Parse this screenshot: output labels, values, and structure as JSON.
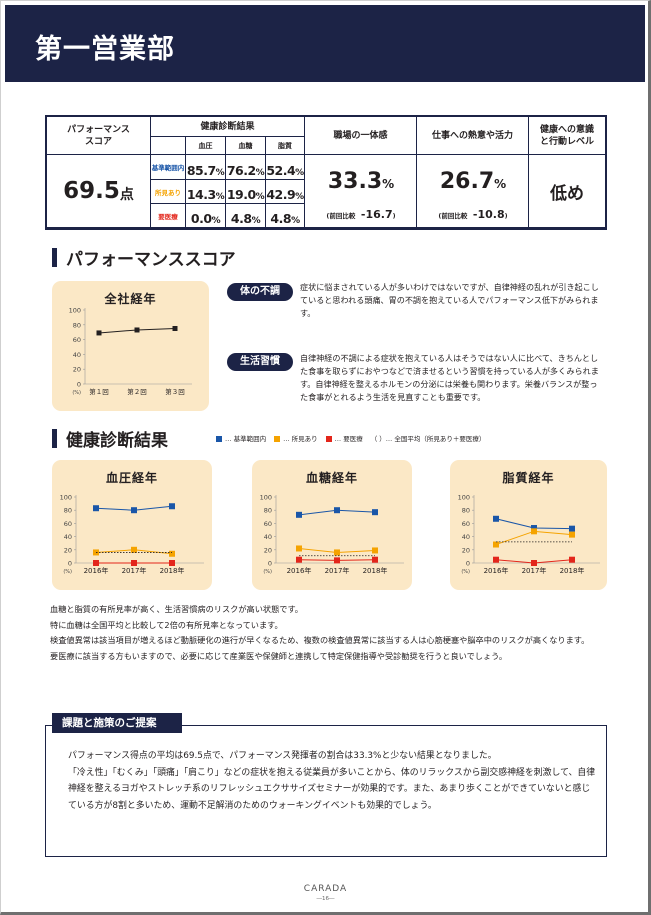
{
  "header": {
    "title": "第一営業部"
  },
  "summary": {
    "performance_label": "パフォーマンス\nスコア",
    "performance_value": "69.5",
    "performance_unit": "点",
    "health_label": "健康診断結果",
    "sub_headers": [
      "血圧",
      "血糖",
      "脂質"
    ],
    "rows": [
      {
        "label": "基準範囲内",
        "values": [
          "85.7",
          "76.2",
          "52.4"
        ]
      },
      {
        "label": "所見あり",
        "values": [
          "14.3",
          "19.0",
          "42.9"
        ]
      },
      {
        "label": "要医療",
        "values": [
          "0.0",
          "4.8",
          "4.8"
        ]
      }
    ],
    "unit": "%",
    "unity": {
      "label": "職場の一体感",
      "value": "33.3",
      "unit": "%",
      "compare_label": "前回比較",
      "compare": "-16.7"
    },
    "engagement": {
      "label": "仕事への熱意や活力",
      "value": "26.7",
      "unit": "%",
      "compare_label": "前回比較",
      "compare": "-10.8"
    },
    "awareness": {
      "label": "健康への意識\nと行動レベル",
      "value": "低め"
    }
  },
  "performance_section": {
    "title": "パフォーマンススコア",
    "chart_title": "全社経年",
    "tag1": "体の不調",
    "text1": "症状に悩まされている人が多いわけではないですが、自律神経の乱れが引き起こしていると思われる頭痛、胃の不調を抱えている人でパフォーマンス低下がみられます。",
    "tag2": "生活習慣",
    "text2": "自律神経の不調による症状を抱えている人はそうではない人に比べて、きちんとした食事を取らずにおやつなどで済ませるという習慣を持っている人が多くみられます。自律神経を整えるホルモンの分泌には栄養も関わります。栄養バランスが整った食事がとれるよう生活を見直すことも重要です。"
  },
  "health_section": {
    "title": "健康診断結果",
    "legend": [
      "… 基準範囲内",
      "… 所見あり",
      "… 要医療",
      "（ ）… 全国平均（所見あり＋要医療）"
    ]
  },
  "colors": {
    "navy": "#1c2346",
    "blue": "#1a56a8",
    "orange": "#f5a300",
    "red": "#e3261b",
    "card": "#fbe8c6"
  },
  "chart_data": [
    {
      "type": "line",
      "title": "全社経年",
      "x": [
        "第１回",
        "第２回",
        "第３回"
      ],
      "ylim": [
        0,
        100
      ],
      "yticks": [
        "0",
        "20",
        "40",
        "60",
        "80",
        "100"
      ],
      "yunit": "(%)",
      "series": [
        {
          "values": [
            69,
            73,
            75
          ]
        }
      ]
    },
    {
      "type": "line",
      "title": "血圧経年",
      "x": [
        "2016年",
        "2017年",
        "2018年"
      ],
      "ylim": [
        0,
        100
      ],
      "yticks": [
        "0",
        "20",
        "40",
        "60",
        "80",
        "100"
      ],
      "yunit": "(%)",
      "series": [
        {
          "name": "基準範囲内",
          "values": [
            83,
            80,
            86
          ]
        },
        {
          "name": "所見あり",
          "values": [
            16,
            20,
            14
          ]
        },
        {
          "name": "要医療",
          "values": [
            0,
            0,
            0
          ]
        },
        {
          "name": "全国平均（所見あり＋要医療）",
          "values": [
            16,
            16,
            16
          ]
        }
      ]
    },
    {
      "type": "line",
      "title": "血糖経年",
      "x": [
        "2016年",
        "2017年",
        "2018年"
      ],
      "ylim": [
        0,
        100
      ],
      "yticks": [
        "0",
        "20",
        "40",
        "60",
        "80",
        "100"
      ],
      "yunit": "(%)",
      "series": [
        {
          "name": "基準範囲内",
          "values": [
            73,
            80,
            77
          ]
        },
        {
          "name": "所見あり",
          "values": [
            22,
            16,
            19
          ]
        },
        {
          "name": "要医療",
          "values": [
            5,
            4,
            5
          ]
        },
        {
          "name": "全国平均（所見あり＋要医療）",
          "values": [
            11,
            11,
            11
          ]
        }
      ]
    },
    {
      "type": "line",
      "title": "脂質経年",
      "x": [
        "2016年",
        "2017年",
        "2018年"
      ],
      "ylim": [
        0,
        100
      ],
      "yticks": [
        "0",
        "20",
        "40",
        "60",
        "80",
        "100"
      ],
      "yunit": "(%)",
      "series": [
        {
          "name": "基準範囲内",
          "values": [
            67,
            53,
            52
          ]
        },
        {
          "name": "所見あり",
          "values": [
            28,
            48,
            43
          ]
        },
        {
          "name": "要医療",
          "values": [
            5,
            0,
            5
          ]
        },
        {
          "name": "全国平均（所見あり＋要医療）",
          "values": [
            32,
            32,
            32
          ]
        }
      ]
    }
  ],
  "summary_text": [
    "血糖と脂質の有所見率が高く、生活習慣病のリスクが高い状態です。",
    "特に血糖は全国平均と比較して2倍の有所見率となっています。",
    "検査値異常は該当項目が増えるほど動脈硬化の進行が早くなるため、複数の検査値異常に該当する人は心筋梗塞や脳卒中のリスクが高くなります。",
    "要医療に該当する方もいますので、必要に応じて産業医や保健師と連携して特定保健指導や受診勧奨を行うと良いでしょう。"
  ],
  "proposal": {
    "tag": "課題と施策のご提案",
    "paragraphs": [
      "パフォーマンス得点の平均は69.5点で、パフォーマンス発揮者の割合は33.3%と少ない結果となりました。",
      "「冷え性」「むくみ」「頭痛」「肩こり」などの症状を抱える従業員が多いことから、体のリラックスから副交感神経を刺激して、自律神経を整えるヨガやストレッチ系のリフレッシュエクササイズセミナーが効果的です。また、あまり歩くことができていないと感じている方が8割と多いため、運動不足解消のためのウォーキングイベントも効果的でしょう。"
    ]
  },
  "footer": {
    "logo": "CARADA",
    "page": "―16―"
  }
}
